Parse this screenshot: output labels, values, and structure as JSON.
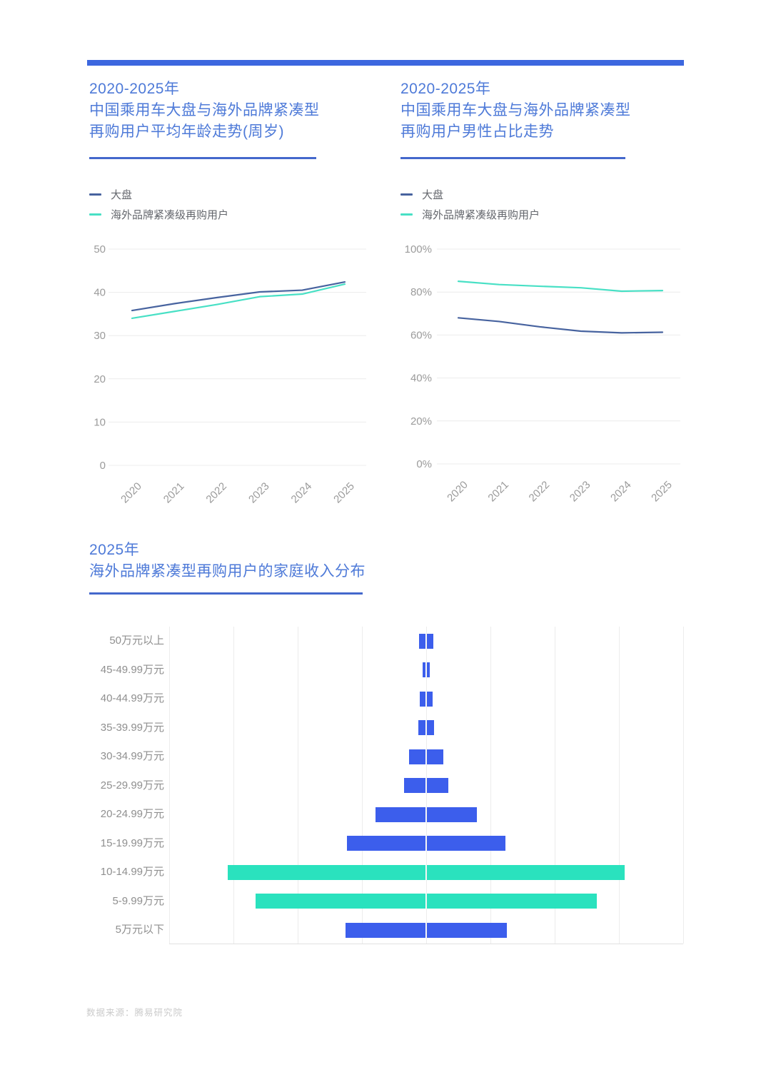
{
  "page": {
    "accent_bar_color": "#3C67DF",
    "title_color": "#4E7AD8",
    "underline_color": "#4468CC",
    "footer": "数据来源：腾易研究院"
  },
  "chart_data": [
    {
      "type": "line",
      "title": "2020-2025年中国乘用车大盘与海外品牌紧凑型再购用户平均年龄走势(周岁)",
      "title_lines": [
        "2020-2025年",
        "中国乘用车大盘与海外品牌紧凑型",
        "再购用户平均年龄走势(周岁)"
      ],
      "x": [
        "2020",
        "2021",
        "2022",
        "2023",
        "2024",
        "2025"
      ],
      "ylim": [
        0,
        50
      ],
      "ytick_values": [
        0,
        10,
        20,
        30,
        40,
        50
      ],
      "ytick_labels": [
        "0",
        "10",
        "20",
        "30",
        "40",
        "50"
      ],
      "grid": "horizontal",
      "legend_position": "top-left",
      "series": [
        {
          "name": "大盘",
          "color": "#47639F",
          "values": [
            35.8,
            37.4,
            38.8,
            40.1,
            40.5,
            42.4
          ]
        },
        {
          "name": "海外品牌紧凑级再购用户",
          "color": "#48E0C5",
          "values": [
            34.0,
            35.6,
            37.2,
            39.0,
            39.6,
            41.9
          ]
        }
      ]
    },
    {
      "type": "line",
      "title": "2020-2025年中国乘用车大盘与海外品牌紧凑型再购用户男性占比走势",
      "title_lines": [
        "2020-2025年",
        "中国乘用车大盘与海外品牌紧凑型",
        "再购用户男性占比走势"
      ],
      "x": [
        "2020",
        "2021",
        "2022",
        "2023",
        "2024",
        "2025"
      ],
      "ylim": [
        0,
        100
      ],
      "ytick_values": [
        0,
        20,
        40,
        60,
        80,
        100
      ],
      "ytick_labels": [
        "0%",
        "20%",
        "40%",
        "60%",
        "80%",
        "100%"
      ],
      "grid": "horizontal",
      "legend_position": "top-left",
      "series": [
        {
          "name": "大盘",
          "color": "#47639F",
          "values": [
            68.0,
            66.3,
            63.8,
            61.8,
            61.0,
            61.3
          ]
        },
        {
          "name": "海外品牌紧凑级再购用户",
          "color": "#48E0C5",
          "values": [
            85.0,
            83.5,
            82.7,
            82.0,
            80.4,
            80.7
          ]
        }
      ]
    },
    {
      "type": "bar",
      "orientation": "horizontal-centered",
      "title": "2025年海外品牌紧凑型再购用户的家庭收入分布",
      "title_lines": [
        "2025年",
        "海外品牌紧凑型再购用户的家庭收入分布"
      ],
      "categories": [
        "50万元以上",
        "45-49.99万元",
        "40-44.99万元",
        "35-39.99万元",
        "30-34.99万元",
        "25-29.99万元",
        "20-24.99万元",
        "15-19.99万元",
        "10-14.99万元",
        "5-9.99万元",
        "5万元以下"
      ],
      "values": [
        1.1,
        0.6,
        1.0,
        1.2,
        2.7,
        3.4,
        7.9,
        12.3,
        30.9,
        26.6,
        12.6
      ],
      "unit": "%",
      "xlim_from_center": [
        -20,
        20
      ],
      "grid": "vertical",
      "grid_step": 5,
      "bar_color_default": "#3C5EEC",
      "bar_color_highlight": "#2AE2BE",
      "highlight_indices": [
        8,
        9
      ]
    }
  ]
}
